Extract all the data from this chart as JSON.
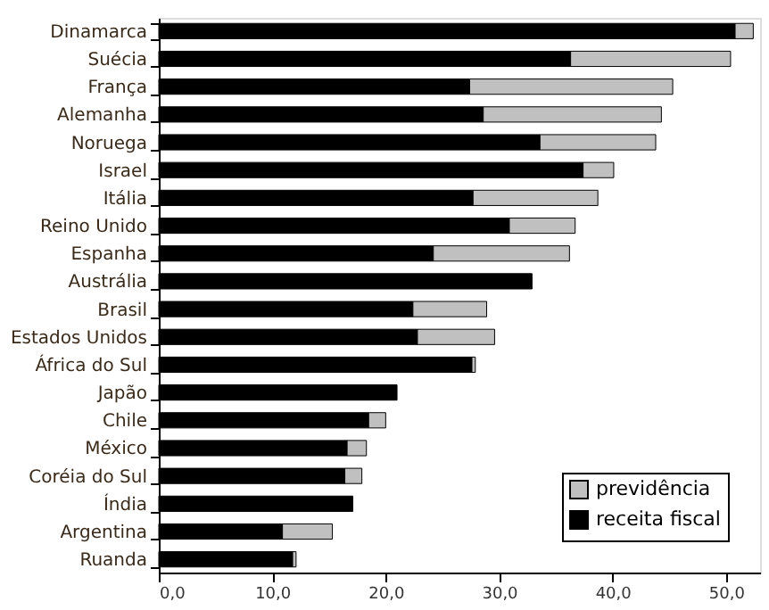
{
  "chart_data": {
    "type": "bar",
    "orientation": "horizontal",
    "stacked": true,
    "categories": [
      "Dinamarca",
      "Suécia",
      "França",
      "Alemanha",
      "Noruega",
      "Israel",
      "Itália",
      "Reino Unido",
      "Espanha",
      "Austrália",
      "Brasil",
      "Estados Unidos",
      "África do Sul",
      "Japão",
      "Chile",
      "México",
      "Coréia do Sul",
      "Índia",
      "Argentina",
      "Ruanda"
    ],
    "series": [
      {
        "name": "receita fiscal",
        "color": "#000000",
        "values": [
          50.8,
          36.3,
          27.4,
          28.6,
          33.6,
          37.4,
          27.7,
          30.9,
          24.2,
          32.9,
          22.4,
          22.8,
          27.6,
          21.0,
          18.5,
          16.6,
          16.4,
          17.1,
          10.9,
          11.8
        ]
      },
      {
        "name": "previdência",
        "color": "#c0c0c0",
        "values": [
          1.6,
          14.1,
          17.9,
          15.7,
          10.2,
          2.7,
          11.0,
          5.8,
          12.0,
          null,
          6.5,
          6.8,
          0.3,
          null,
          1.5,
          1.7,
          1.5,
          null,
          4.4,
          0.3
        ]
      }
    ],
    "xlim": [
      0,
      53
    ],
    "xticks": [
      {
        "value": 0,
        "label": "0,0"
      },
      {
        "value": 10,
        "label": "10,0"
      },
      {
        "value": 20,
        "label": "20,0"
      },
      {
        "value": 30,
        "label": "30,0"
      },
      {
        "value": 40,
        "label": "40,0"
      },
      {
        "value": 50,
        "label": "50,0"
      }
    ],
    "grid": false,
    "legend": "bottom right"
  }
}
